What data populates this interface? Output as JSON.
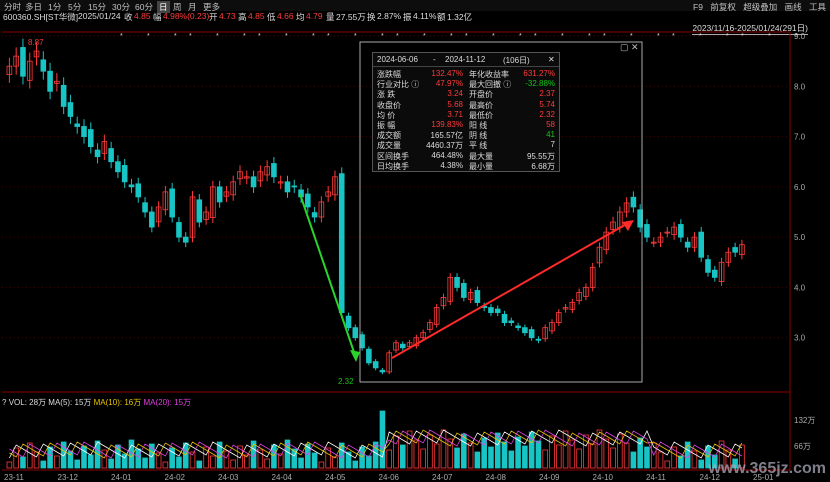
{
  "toolbar": {
    "items": [
      "分时",
      "多日",
      "1分",
      "5分",
      "15分",
      "30分",
      "60分",
      "日",
      "周",
      "月",
      "更多"
    ],
    "active_index": 7,
    "right": [
      "F9",
      "前复权",
      "超级叠加",
      "画线",
      "工具"
    ]
  },
  "info": {
    "code": "600360.SH[ST华微]",
    "date": "2025/01/24",
    "close_label": "收",
    "close": "4.85",
    "change_label": "幅",
    "change": "4.98%(0.23)",
    "open_label": "开",
    "open": "4.73",
    "high_label": "高",
    "high": "4.85",
    "low_label": "低",
    "low": "4.66",
    "avg_label": "均",
    "avg": "4.79",
    "vol_label": "量",
    "vol": "27.55万",
    "turn_label": "换",
    "turn": "2.87%",
    "amp_label": "振",
    "amp": "4.11%",
    "amt_label": "额",
    "amt": "1.32亿"
  },
  "range_label": "2023/11/16-2025/01/24(291日)",
  "price_axis": [
    "9.0",
    "8.0",
    "7.0",
    "6.0",
    "5.0",
    "4.0",
    "3.0"
  ],
  "volume_axis": [
    "132万",
    "66万"
  ],
  "date_axis": [
    "23-11",
    "23-12",
    "24-01",
    "24-02",
    "24-03",
    "24-04",
    "24-05",
    "24-06",
    "24-07",
    "24-08",
    "24-09",
    "24-10",
    "24-11",
    "24-12",
    "25-01"
  ],
  "max_label": "8.87",
  "min_label": "2.32",
  "volume_legend": {
    "q": "?",
    "vol": "VOL: 28万",
    "ma5": "MA(5): 15万",
    "ma10": "MA(10): 16万",
    "ma20": "MA(20): 15万"
  },
  "stats": {
    "start": "2024-06-06",
    "sep": "-",
    "end": "2024-11-12",
    "days": "(106日)",
    "close_x": "✕",
    "rows": [
      {
        "k1": "涨跌幅",
        "v1": "132.47%",
        "c1": "#ff3b3b",
        "k2": "年化收益率",
        "v2": "631.27%",
        "c2": "#ff3b3b"
      },
      {
        "k1": "行业对比 ⓘ",
        "v1": "47.97%",
        "c1": "#ff3b3b",
        "k2": "最大回撤 ⓘ",
        "v2": "-32.88%",
        "c2": "#19c419"
      },
      {
        "k1": "涨   跌",
        "v1": "3.24",
        "c1": "#ff3b3b",
        "k2": "开盘价",
        "v2": "2.37",
        "c2": "#ff3b3b"
      },
      {
        "k1": "收盘价",
        "v1": "5.68",
        "c1": "#ff3b3b",
        "k2": "最高价",
        "v2": "5.74",
        "c2": "#ff3b3b"
      },
      {
        "k1": "均   价",
        "v1": "3.71",
        "c1": "#ff3b3b",
        "k2": "最低价",
        "v2": "2.32",
        "c2": "#ff3b3b"
      },
      {
        "k1": "振   幅",
        "v1": "139.83%",
        "c1": "#ff3b3b",
        "k2": "阳   线",
        "v2": "58",
        "c2": "#ff3b3b"
      },
      {
        "k1": "成交额",
        "v1": "165.57亿",
        "c1": "#ddd",
        "k2": "阴   线",
        "v2": "41",
        "c2": "#19c419"
      },
      {
        "k1": "成交量",
        "v1": "4460.37万",
        "c1": "#ddd",
        "k2": "平   线",
        "v2": "7",
        "c2": "#ddd"
      },
      {
        "k1": "区间换手",
        "v1": "464.48%",
        "c1": "#ddd",
        "k2": "最大量",
        "v2": "95.55万",
        "c2": "#ddd"
      },
      {
        "k1": "日均换手",
        "v1": "4.38%",
        "c1": "#ddd",
        "k2": "最小量",
        "v2": "6.68万",
        "c2": "#ddd"
      }
    ]
  },
  "watermark": "www.365jz.com",
  "colors": {
    "up": "#ff3b3b",
    "down": "#19c4c4",
    "arrow_green": "#2bd42b",
    "arrow_red": "#ff2a2a",
    "ma5": "#ffffff",
    "ma10": "#e8c400",
    "ma20": "#e040e0"
  },
  "chart_data": {
    "type": "candlestick",
    "price_scale": {
      "min": 2.32,
      "max": 9.0
    },
    "series_close": [
      8.4,
      8.6,
      8.2,
      8.5,
      8.7,
      8.3,
      7.9,
      8.1,
      7.6,
      7.4,
      7.2,
      7.0,
      6.8,
      6.6,
      6.9,
      6.5,
      6.3,
      6.1,
      6.0,
      5.8,
      5.5,
      5.2,
      5.6,
      5.9,
      5.4,
      5.0,
      4.9,
      5.8,
      5.3,
      5.5,
      6.0,
      5.7,
      5.9,
      6.1,
      6.3,
      6.2,
      6.0,
      6.3,
      6.4,
      6.2,
      6.1,
      5.9,
      6.0,
      5.8,
      5.6,
      5.4,
      5.7,
      5.9,
      6.2,
      3.5,
      3.2,
      3.0,
      2.8,
      2.5,
      2.4,
      2.32,
      2.7,
      2.9,
      2.8,
      2.9,
      3.0,
      3.1,
      3.3,
      3.6,
      3.8,
      4.2,
      4.0,
      3.8,
      3.9,
      3.7,
      3.6,
      3.5,
      3.5,
      3.3,
      3.3,
      3.2,
      3.1,
      3.0,
      2.95,
      3.2,
      3.3,
      3.5,
      3.6,
      3.7,
      3.9,
      4.0,
      4.4,
      4.8,
      5.1,
      5.3,
      5.5,
      5.68,
      5.6,
      5.2,
      5.0,
      4.9,
      5.0,
      5.1,
      5.2,
      5.0,
      4.8,
      5.0,
      4.6,
      4.3,
      4.2,
      4.5,
      4.7,
      4.7,
      4.85
    ]
  }
}
